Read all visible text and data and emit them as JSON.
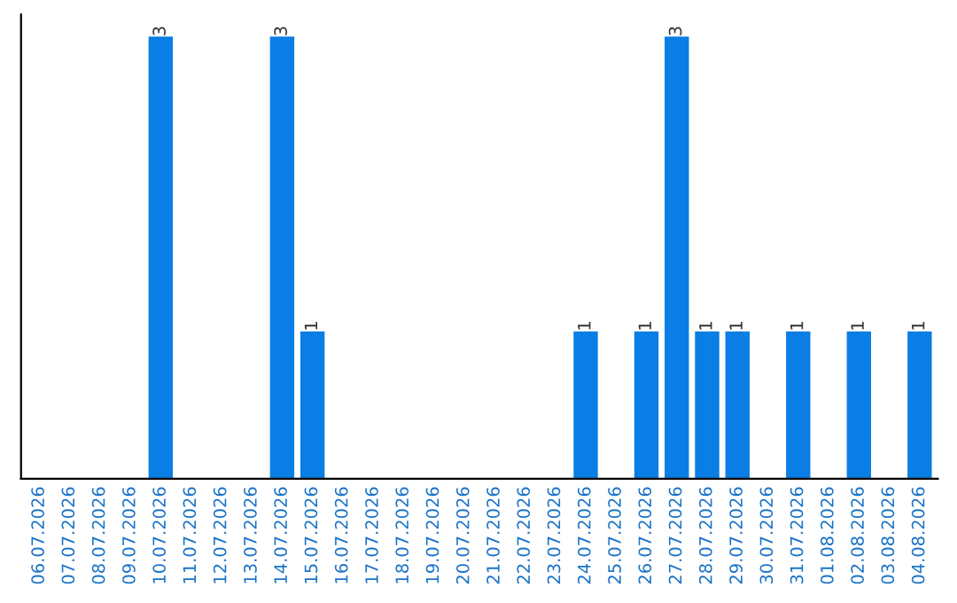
{
  "chart_data": {
    "type": "bar",
    "categories": [
      "06.07.2026",
      "07.07.2026",
      "08.07.2026",
      "09.07.2026",
      "10.07.2026",
      "11.07.2026",
      "12.07.2026",
      "13.07.2026",
      "14.07.2026",
      "15.07.2026",
      "16.07.2026",
      "17.07.2026",
      "18.07.2026",
      "19.07.2026",
      "20.07.2026",
      "21.07.2026",
      "22.07.2026",
      "23.07.2026",
      "24.07.2026",
      "25.07.2026",
      "26.07.2026",
      "27.07.2026",
      "28.07.2026",
      "29.07.2026",
      "30.07.2026",
      "31.07.2026",
      "01.08.2026",
      "02.08.2026",
      "03.08.2026",
      "04.08.2026"
    ],
    "values": [
      0,
      0,
      0,
      0,
      3,
      0,
      0,
      0,
      3,
      1,
      0,
      0,
      0,
      0,
      0,
      0,
      0,
      0,
      1,
      0,
      1,
      3,
      1,
      1,
      0,
      1,
      0,
      1,
      0,
      1
    ],
    "value_labels": [
      null,
      null,
      null,
      null,
      "3",
      null,
      null,
      null,
      "3",
      "1",
      null,
      null,
      null,
      null,
      null,
      null,
      null,
      null,
      "1",
      null,
      "1",
      "3",
      "1",
      "1",
      null,
      "1",
      null,
      "1",
      null,
      "1"
    ],
    "color": "#0a7ee4",
    "ylim": [
      0,
      3.15
    ],
    "grid": false,
    "legend": false
  }
}
